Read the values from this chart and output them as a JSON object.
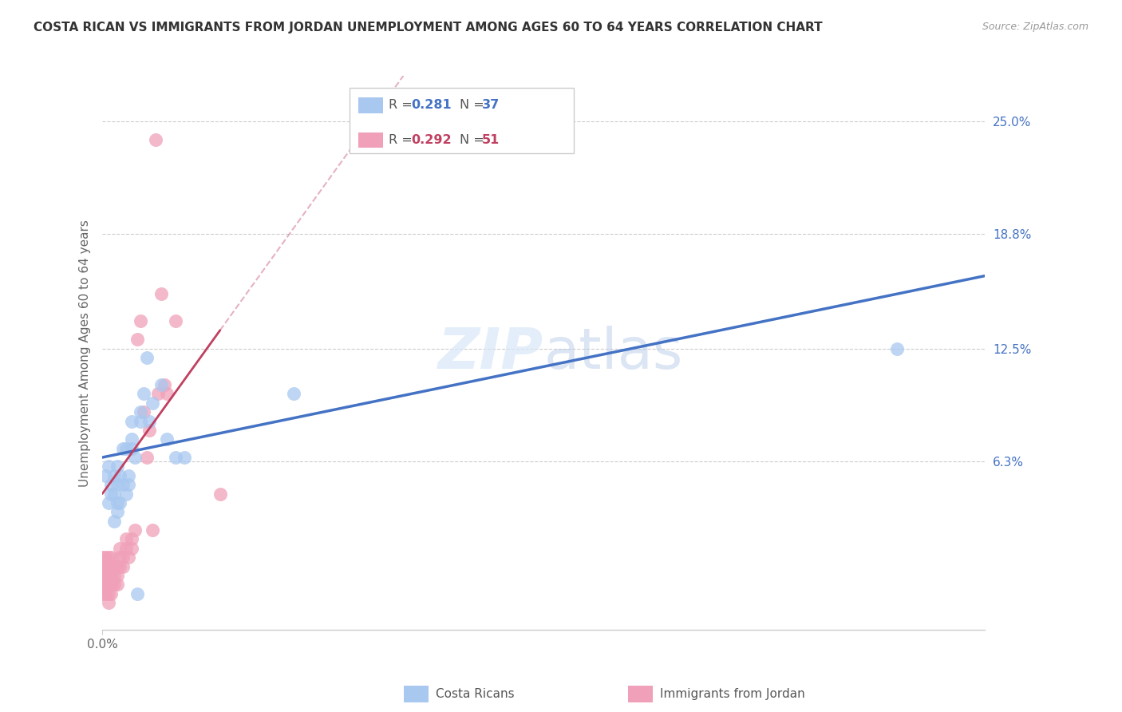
{
  "title": "COSTA RICAN VS IMMIGRANTS FROM JORDAN UNEMPLOYMENT AMONG AGES 60 TO 64 YEARS CORRELATION CHART",
  "source": "Source: ZipAtlas.com",
  "ylabel": "Unemployment Among Ages 60 to 64 years",
  "ytick_labels": [
    "25.0%",
    "18.8%",
    "12.5%",
    "6.3%"
  ],
  "ytick_values": [
    0.25,
    0.188,
    0.125,
    0.063
  ],
  "xlim": [
    0.0,
    0.3
  ],
  "ylim": [
    -0.03,
    0.275
  ],
  "legend_blue_r": "0.281",
  "legend_blue_n": "37",
  "legend_pink_r": "0.292",
  "legend_pink_n": "51",
  "blue_color": "#a8c8f0",
  "pink_color": "#f0a0b8",
  "blue_line_color": "#4472c4",
  "pink_line_color": "#c04060",
  "watermark_zip": "ZIP",
  "watermark_atlas": "atlas",
  "blue_scatter_x": [
    0.001,
    0.002,
    0.002,
    0.003,
    0.003,
    0.004,
    0.004,
    0.004,
    0.005,
    0.005,
    0.005,
    0.005,
    0.006,
    0.006,
    0.007,
    0.007,
    0.008,
    0.008,
    0.009,
    0.009,
    0.01,
    0.01,
    0.01,
    0.011,
    0.012,
    0.013,
    0.013,
    0.014,
    0.015,
    0.016,
    0.017,
    0.02,
    0.022,
    0.025,
    0.028,
    0.065,
    0.27
  ],
  "blue_scatter_y": [
    0.055,
    0.06,
    0.04,
    0.05,
    0.045,
    0.045,
    0.055,
    0.03,
    0.06,
    0.05,
    0.04,
    0.035,
    0.055,
    0.04,
    0.05,
    0.07,
    0.07,
    0.045,
    0.055,
    0.05,
    0.075,
    0.085,
    0.07,
    0.065,
    -0.01,
    0.09,
    0.085,
    0.1,
    0.12,
    0.085,
    0.095,
    0.105,
    0.075,
    0.065,
    0.065,
    0.1,
    0.125
  ],
  "pink_scatter_x": [
    0.0,
    0.0,
    0.0,
    0.0,
    0.0,
    0.001,
    0.001,
    0.001,
    0.001,
    0.001,
    0.002,
    0.002,
    0.002,
    0.002,
    0.002,
    0.002,
    0.003,
    0.003,
    0.003,
    0.003,
    0.003,
    0.004,
    0.004,
    0.004,
    0.005,
    0.005,
    0.005,
    0.006,
    0.006,
    0.006,
    0.007,
    0.007,
    0.008,
    0.008,
    0.009,
    0.01,
    0.01,
    0.011,
    0.012,
    0.013,
    0.014,
    0.015,
    0.016,
    0.017,
    0.018,
    0.019,
    0.02,
    0.021,
    0.022,
    0.025,
    0.04
  ],
  "pink_scatter_y": [
    -0.01,
    -0.005,
    0.0,
    0.005,
    0.01,
    -0.01,
    -0.005,
    0.0,
    0.005,
    0.01,
    -0.015,
    -0.01,
    -0.005,
    0.0,
    0.005,
    0.01,
    -0.01,
    -0.005,
    0.0,
    0.005,
    0.01,
    -0.005,
    0.0,
    0.005,
    -0.005,
    0.0,
    0.005,
    0.005,
    0.01,
    0.015,
    0.005,
    0.01,
    0.015,
    0.02,
    0.01,
    0.015,
    0.02,
    0.025,
    0.13,
    0.14,
    0.09,
    0.065,
    0.08,
    0.025,
    0.24,
    0.1,
    0.155,
    0.105,
    0.1,
    0.14,
    0.045
  ],
  "blue_line_x": [
    0.0,
    0.3
  ],
  "blue_line_y": [
    0.065,
    0.165
  ],
  "pink_line_x": [
    0.0,
    0.04
  ],
  "pink_line_y": [
    0.045,
    0.135
  ]
}
